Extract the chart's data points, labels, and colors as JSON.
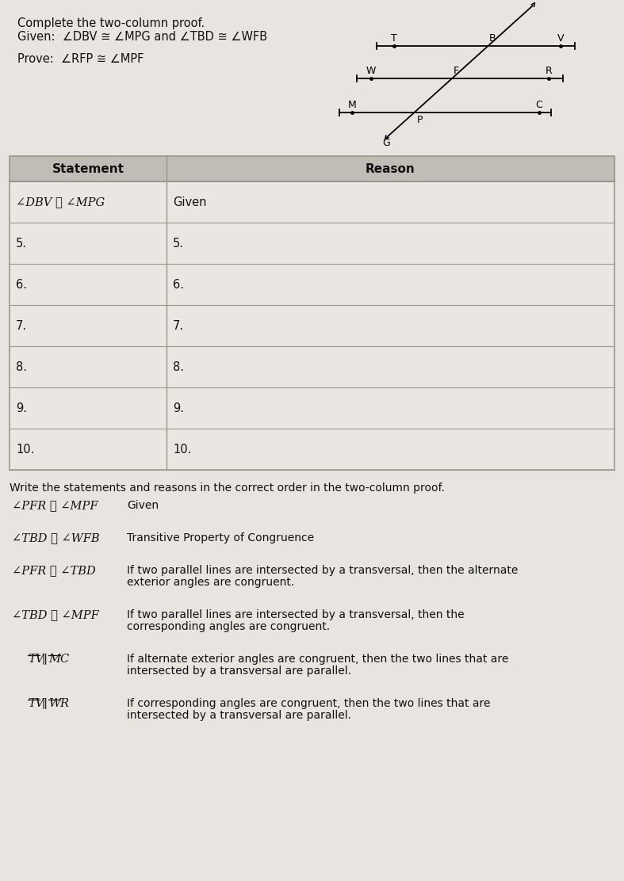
{
  "title1": "Complete the two-column proof.",
  "title2": "Given:  ∠DBV ≅ ∠MPG and ∠TBD ≅ ∠WFB",
  "title3": "Prove:  ∠RFP ≅ ∠MPF",
  "table_header": [
    "Statement",
    "Reason"
  ],
  "table_row0_stmt": "∠DBV ≅ ∠MPG",
  "table_row0_reason": "Given",
  "table_numbered_rows": [
    "5.",
    "6.",
    "7.",
    "8.",
    "9.",
    "10."
  ],
  "below_table_title": "Write the statements and reasons in the correct order in the two-column proof.",
  "answer_items": [
    {
      "stmt": "∠PFR ≅ ∠MPF",
      "reason": "Given",
      "reason2": ""
    },
    {
      "stmt": "∠TBD ≅ ∠WFB",
      "reason": "Transitive Property of Congruence",
      "reason2": ""
    },
    {
      "stmt": "∠PFR ≅ ∠TBD",
      "reason": "If two parallel lines are intersected by a transversal, then the alternate",
      "reason2": "exterior angles are congruent."
    },
    {
      "stmt": "∠TBD ≅ ∠MPF",
      "reason": "If two parallel lines are intersected by a transversal, then the",
      "reason2": "corresponding angles are congruent."
    },
    {
      "stmt": "TV_MC",
      "reason": "If alternate exterior angles are congruent, then the two lines that are",
      "reason2": "intersected by a transversal are parallel."
    },
    {
      "stmt": "TV_WR",
      "reason": "If corresponding angles are congruent, then the two lines that are",
      "reason2": "intersected by a transversal are parallel."
    }
  ],
  "page_bg": "#d8d4ce",
  "paper_bg": "#e8e4df",
  "table_hdr_bg": "#c0bcb6",
  "table_row_bg": "#eae7e2",
  "table_border": "#999990",
  "text_dark": "#111111",
  "text_mid": "#333333"
}
